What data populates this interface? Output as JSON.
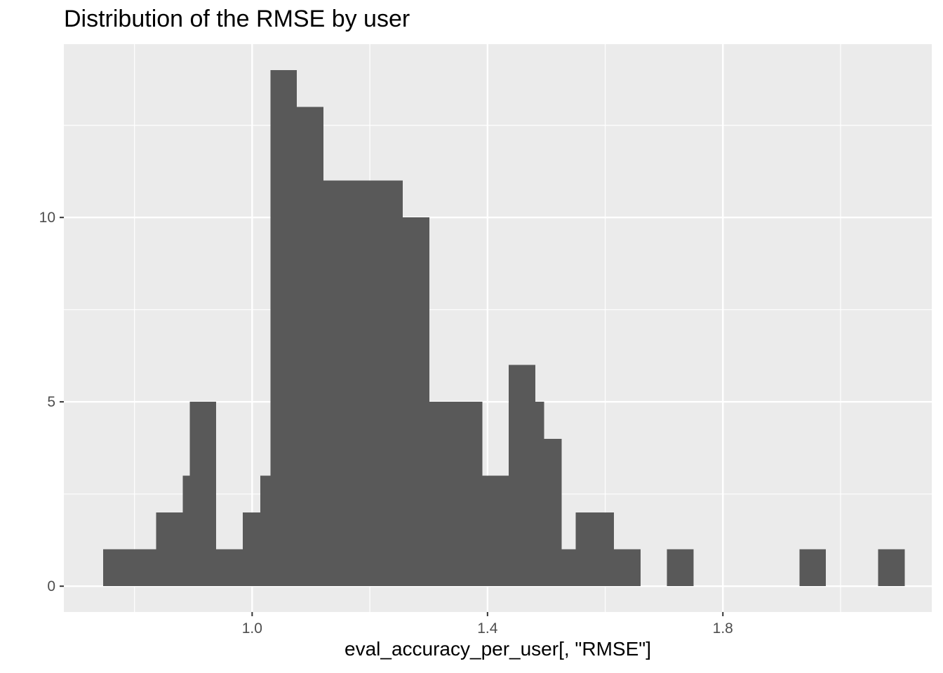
{
  "chart_data": {
    "type": "bar",
    "subtype": "histogram",
    "title": "Distribution of the RMSE by user",
    "xlabel": "eval_accuracy_per_user[, \"RMSE\"]",
    "ylabel": "",
    "xlim": [
      0.68,
      2.155
    ],
    "ylim": [
      -0.7,
      14.7
    ],
    "x_ticks": [
      1.0,
      1.4,
      1.8
    ],
    "x_tick_labels": [
      "1.0",
      "1.4",
      "1.8"
    ],
    "x_minor_ticks": [
      0.8,
      1.2,
      1.6,
      2.0
    ],
    "y_ticks": [
      0,
      5,
      10
    ],
    "y_tick_labels": [
      "0",
      "5",
      "10"
    ],
    "y_minor_ticks": [
      2.5,
      7.5,
      12.5
    ],
    "grid": true,
    "bar_color": "#595959",
    "panel_background": "#ebebeb",
    "bins": [
      {
        "x0": 0.747,
        "x1": 0.792,
        "count": 1
      },
      {
        "x0": 0.792,
        "x1": 0.837,
        "count": 1
      },
      {
        "x0": 0.837,
        "x1": 0.882,
        "count": 2
      },
      {
        "x0": 0.882,
        "x1": 0.894,
        "count": 3
      },
      {
        "x0": 0.894,
        "x1": 0.939,
        "count": 5
      },
      {
        "x0": 0.939,
        "x1": 0.984,
        "count": 1
      },
      {
        "x0": 0.984,
        "x1": 1.014,
        "count": 2
      },
      {
        "x0": 1.014,
        "x1": 1.031,
        "count": 3
      },
      {
        "x0": 1.031,
        "x1": 1.076,
        "count": 14
      },
      {
        "x0": 1.076,
        "x1": 1.121,
        "count": 13
      },
      {
        "x0": 1.121,
        "x1": 1.256,
        "count": 11
      },
      {
        "x0": 1.256,
        "x1": 1.301,
        "count": 10
      },
      {
        "x0": 1.301,
        "x1": 1.391,
        "count": 5
      },
      {
        "x0": 1.391,
        "x1": 1.436,
        "count": 3
      },
      {
        "x0": 1.436,
        "x1": 1.481,
        "count": 6
      },
      {
        "x0": 1.481,
        "x1": 1.496,
        "count": 5
      },
      {
        "x0": 1.496,
        "x1": 1.526,
        "count": 4
      },
      {
        "x0": 1.526,
        "x1": 1.55,
        "count": 1
      },
      {
        "x0": 1.55,
        "x1": 1.615,
        "count": 2
      },
      {
        "x0": 1.615,
        "x1": 1.66,
        "count": 1
      },
      {
        "x0": 1.705,
        "x1": 1.75,
        "count": 1
      },
      {
        "x0": 1.93,
        "x1": 1.975,
        "count": 1
      },
      {
        "x0": 2.064,
        "x1": 2.109,
        "count": 1
      }
    ]
  }
}
